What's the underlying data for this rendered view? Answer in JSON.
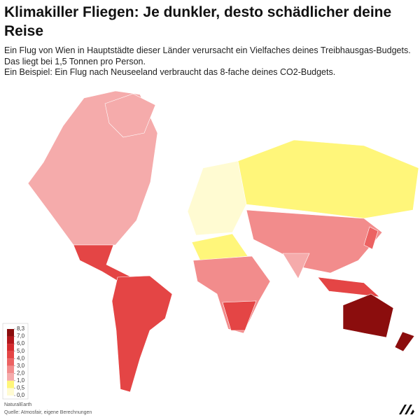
{
  "title": "Klimakiller Fliegen: Je dunkler, desto schädlicher deine Reise",
  "description": [
    "Ein Flug von Wien in Hauptstädte dieser Länder verursacht ein Vielfaches deines Treibhausgas-Budgets. Das liegt bei 1,5 Tonnen pro Person.",
    "Ein Beispiel: Ein Flug nach Neuseeland verbraucht das 8-fache deines CO2-Budgets."
  ],
  "legend": {
    "ticks": [
      {
        "value": 8.3,
        "label": "8,3"
      },
      {
        "value": 7,
        "label": "7,0"
      },
      {
        "value": 6,
        "label": "6,0"
      },
      {
        "value": 5,
        "label": "5,0"
      },
      {
        "value": 4,
        "label": "4,0"
      },
      {
        "value": 3,
        "label": "3,0"
      },
      {
        "value": 2,
        "label": "2,0"
      },
      {
        "value": 1,
        "label": "1,0"
      },
      {
        "value": 0.5,
        "label": "0,5"
      },
      {
        "value": 0,
        "label": "0,0"
      }
    ],
    "colors": [
      "#8b0d0d",
      "#b3161b",
      "#d42a2d",
      "#e44545",
      "#ec6262",
      "#f28c8c",
      "#f5abab",
      "#fff67a",
      "#fffbd2"
    ]
  },
  "region_values": [
    1.6,
    1.6,
    4.5,
    4.8,
    0.3,
    0.8,
    0.8,
    2.2,
    4.2,
    2.0,
    1.8,
    4.3,
    3.6,
    7.6,
    8.3
  ],
  "credit": "NaturalEarth",
  "source": "Quelle: Atmosfair, eigene Berechnungen"
}
